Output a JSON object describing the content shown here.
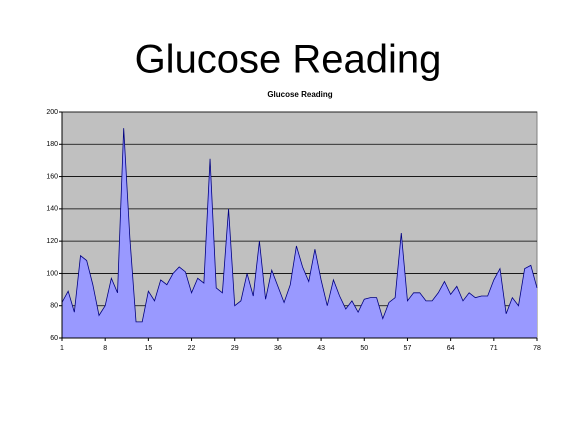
{
  "slide_title": "Glucose Reading",
  "chart_data": {
    "type": "area",
    "title": "Glucose Reading",
    "x": [
      1,
      2,
      3,
      4,
      5,
      6,
      7,
      8,
      9,
      10,
      11,
      12,
      13,
      14,
      15,
      16,
      17,
      18,
      19,
      20,
      21,
      22,
      23,
      24,
      25,
      26,
      27,
      28,
      29,
      30,
      31,
      32,
      33,
      34,
      35,
      36,
      37,
      38,
      39,
      40,
      41,
      42,
      43,
      44,
      45,
      46,
      47,
      48,
      49,
      50,
      51,
      52,
      53,
      54,
      55,
      56,
      57,
      58,
      59,
      60,
      61,
      62,
      63,
      64,
      65,
      66,
      67,
      68,
      69,
      70,
      71,
      72,
      73,
      74,
      75,
      76,
      77,
      78
    ],
    "values": [
      82,
      89,
      76,
      111,
      108,
      93,
      74,
      80,
      97,
      88,
      190,
      122,
      70,
      70,
      89,
      83,
      96,
      93,
      100,
      104,
      101,
      88,
      97,
      94,
      171,
      91,
      88,
      140,
      80,
      83,
      100,
      86,
      120,
      84,
      102,
      92,
      82,
      93,
      117,
      104,
      95,
      115,
      96,
      80,
      96,
      86,
      78,
      83,
      76,
      84,
      85,
      85,
      72,
      82,
      85,
      125,
      83,
      88,
      88,
      83,
      83,
      88,
      95,
      87,
      92,
      83,
      88,
      85,
      86,
      86,
      96,
      103,
      75,
      85,
      80,
      103,
      105,
      91
    ],
    "color": "#9999ff",
    "xlim": [
      1,
      78
    ],
    "xticks": [
      1,
      8,
      15,
      22,
      29,
      36,
      43,
      50,
      57,
      64,
      71,
      78
    ],
    "ylim": [
      60,
      200
    ],
    "yticks": [
      60,
      80,
      100,
      120,
      140,
      160,
      180,
      200
    ],
    "grid": true
  }
}
